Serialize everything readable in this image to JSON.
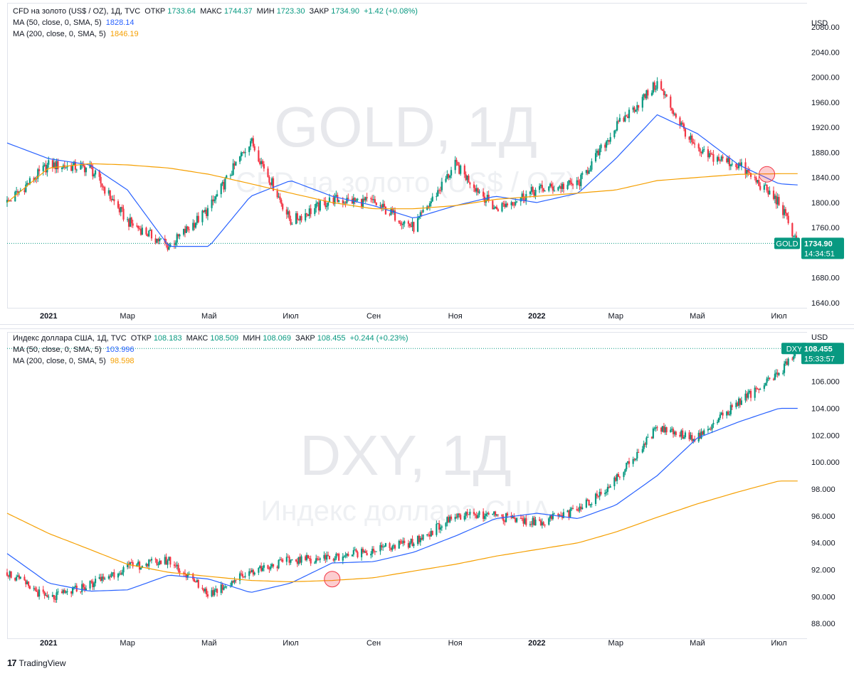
{
  "branding": {
    "logo_mark": "17",
    "name": "TradingView"
  },
  "x_labels": [
    "2021",
    "Мар",
    "Май",
    "Июл",
    "Сен",
    "Ноя",
    "2022",
    "Мар",
    "Май",
    "Июл"
  ],
  "top": {
    "legend": {
      "symbol": "CFD на золото (US$ / OZ), 1Д, TVC",
      "o_label": "ОТКР",
      "o": "1733.64",
      "h_label": "МАКС",
      "h": "1744.37",
      "l_label": "МИН",
      "l": "1723.30",
      "c_label": "ЗАКР",
      "c": "1734.90",
      "change": "+1.42 (+0.08%)",
      "ma50_label": "MA (50, close, 0, SMA, 5)",
      "ma50": "1828.14",
      "ma200_label": "MA (200, close, 0, SMA, 5)",
      "ma200": "1846.19"
    },
    "watermark": {
      "main": "GOLD, 1Д",
      "sub": "CFD на золото (US$ / OZ)"
    },
    "currency": "USD",
    "price_tag": {
      "ticker": "GOLD",
      "price": "1734.90",
      "timer": "14:34:51"
    }
  },
  "bottom": {
    "legend": {
      "symbol": "Индекс доллара США, 1Д, TVC",
      "o_label": "ОТКР",
      "o": "108.183",
      "h_label": "МАКС",
      "h": "108.509",
      "l_label": "МИН",
      "l": "108.069",
      "c_label": "ЗАКР",
      "c": "108.455",
      "change": "+0.244 (+0.23%)",
      "ma50_label": "MA (50, close, 0, SMA, 5)",
      "ma50": "103.996",
      "ma200_label": "MA (200, close, 0, SMA, 5)",
      "ma200": "98.598"
    },
    "watermark": {
      "main": "DXY, 1Д",
      "sub": "Индекс доллара США"
    },
    "currency": "USD",
    "price_tag": {
      "ticker": "DXY",
      "price": "108.455",
      "timer": "15:33:57"
    }
  },
  "chart_data": [
    {
      "type": "line",
      "title": "CFD на золото (US$ / OZ), 1Д, TVC",
      "x": [
        "2020-12-01",
        "2021-01-01",
        "2021-02-01",
        "2021-03-01",
        "2021-04-01",
        "2021-05-01",
        "2021-06-01",
        "2021-07-01",
        "2021-08-01",
        "2021-09-01",
        "2021-10-01",
        "2021-11-01",
        "2021-12-01",
        "2022-01-01",
        "2022-02-01",
        "2022-03-01",
        "2022-04-01",
        "2022-05-01",
        "2022-06-01",
        "2022-07-01",
        "2022-07-15"
      ],
      "ylim": [
        1640,
        2080
      ],
      "yticks": [
        1640,
        1680,
        1720,
        1760,
        1800,
        1840,
        1880,
        1920,
        1960,
        2000,
        2040,
        2080
      ],
      "y_tick_labels": [
        "1640.00",
        "1680.00",
        "1720.00",
        "1760.00",
        "1800.00",
        "1840.00",
        "1880.00",
        "1920.00",
        "1960.00",
        "2000.00",
        "2040.00",
        "2080.00"
      ],
      "y_scale": "linear",
      "grid": false,
      "series": [
        {
          "name": "MA (50, close, 0, SMA, 5)",
          "color": "#2962ff",
          "values": [
            1895,
            1870,
            1860,
            1820,
            1730,
            1730,
            1810,
            1835,
            1810,
            1795,
            1775,
            1795,
            1810,
            1800,
            1815,
            1870,
            1940,
            1910,
            1860,
            1830,
            1828
          ]
        },
        {
          "name": "MA (200, close, 0, SMA, 5)",
          "color": "#f59f00",
          "values": [
            1800,
            1855,
            1862,
            1860,
            1855,
            1845,
            1830,
            1815,
            1800,
            1790,
            1790,
            1795,
            1805,
            1810,
            1815,
            1820,
            1835,
            1840,
            1845,
            1846,
            1846
          ]
        },
        {
          "name": "Price",
          "color": "#131722",
          "values": [
            1800,
            1860,
            1855,
            1770,
            1730,
            1790,
            1900,
            1770,
            1805,
            1800,
            1760,
            1860,
            1790,
            1820,
            1830,
            1920,
            1990,
            1880,
            1860,
            1800,
            1735
          ]
        }
      ],
      "current_price": 1734.9
    },
    {
      "type": "line",
      "title": "Индекс доллара США, 1Д, TVC",
      "x": [
        "2020-12-01",
        "2021-01-01",
        "2021-02-01",
        "2021-03-01",
        "2021-04-01",
        "2021-05-01",
        "2021-06-01",
        "2021-07-01",
        "2021-08-01",
        "2021-09-01",
        "2021-10-01",
        "2021-11-01",
        "2021-12-01",
        "2022-01-01",
        "2022-02-01",
        "2022-03-01",
        "2022-04-01",
        "2022-05-01",
        "2022-06-01",
        "2022-07-01",
        "2022-07-15"
      ],
      "ylim": [
        87,
        109
      ],
      "yticks": [
        88,
        90,
        92,
        94,
        96,
        98,
        100,
        102,
        104,
        106
      ],
      "y_tick_labels": [
        "88.000",
        "90.000",
        "92.000",
        "94.000",
        "96.000",
        "98.000",
        "100.000",
        "102.000",
        "104.000",
        "106.000"
      ],
      "y_scale": "linear",
      "grid": false,
      "series": [
        {
          "name": "MA (50, close, 0, SMA, 5)",
          "color": "#2962ff",
          "values": [
            93.2,
            91.0,
            90.4,
            90.5,
            91.6,
            91.3,
            90.3,
            91.0,
            92.5,
            92.6,
            93.3,
            94.5,
            95.8,
            96.2,
            95.8,
            96.8,
            99.0,
            101.8,
            103.0,
            104.0,
            104.0
          ]
        },
        {
          "name": "MA (200, close, 0, SMA, 5)",
          "color": "#f59f00",
          "values": [
            96.2,
            94.7,
            93.5,
            92.4,
            91.8,
            91.5,
            91.2,
            91.1,
            91.2,
            91.4,
            91.9,
            92.4,
            93.0,
            93.5,
            94.0,
            94.8,
            95.9,
            96.9,
            97.8,
            98.6,
            98.6
          ]
        },
        {
          "name": "Price",
          "color": "#131722",
          "values": [
            91.8,
            89.8,
            90.9,
            92.2,
            92.7,
            90.2,
            91.9,
            92.7,
            92.9,
            93.5,
            94.0,
            96.0,
            96.0,
            95.5,
            96.4,
            98.7,
            102.6,
            101.8,
            104.5,
            106.5,
            108.455
          ]
        }
      ],
      "current_price": 108.455
    }
  ]
}
